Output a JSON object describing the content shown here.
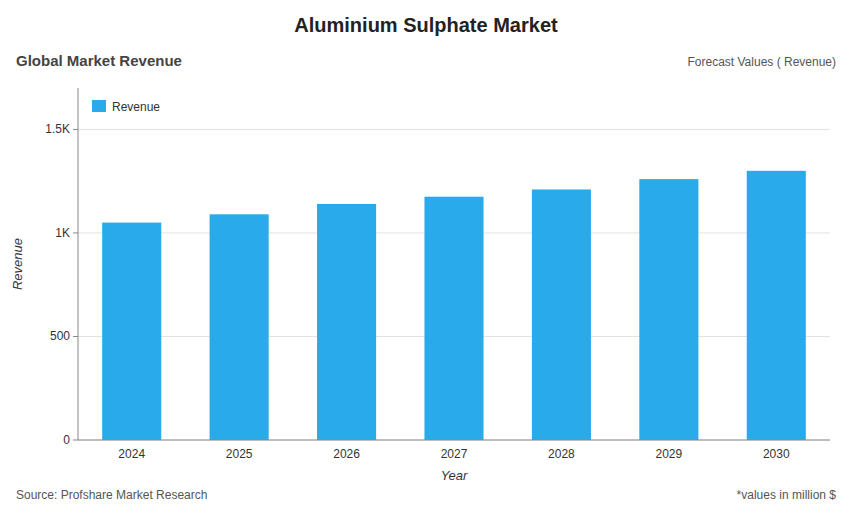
{
  "chart_data": {
    "type": "bar",
    "title": "Aluminium Sulphate Market",
    "subtitle": "Global Market Revenue",
    "annotations": [
      "Forecast Values ( Revenue)",
      "Source: Profshare Market Research",
      "*values in million $"
    ],
    "xlabel": "Year",
    "ylabel": "Revenue",
    "categories": [
      "2024",
      "2025",
      "2026",
      "2027",
      "2028",
      "2029",
      "2030"
    ],
    "series": [
      {
        "name": "Revenue",
        "color": "#29ABEB",
        "values": [
          1050,
          1090,
          1140,
          1175,
          1210,
          1260,
          1300
        ]
      }
    ],
    "ylim": [
      0,
      1700
    ],
    "yticks": [
      0,
      500,
      {
        "value": 1000,
        "label": "1K"
      },
      {
        "value": 1500,
        "label": "1.5K"
      }
    ],
    "grid": true,
    "legend": "upper-left"
  }
}
